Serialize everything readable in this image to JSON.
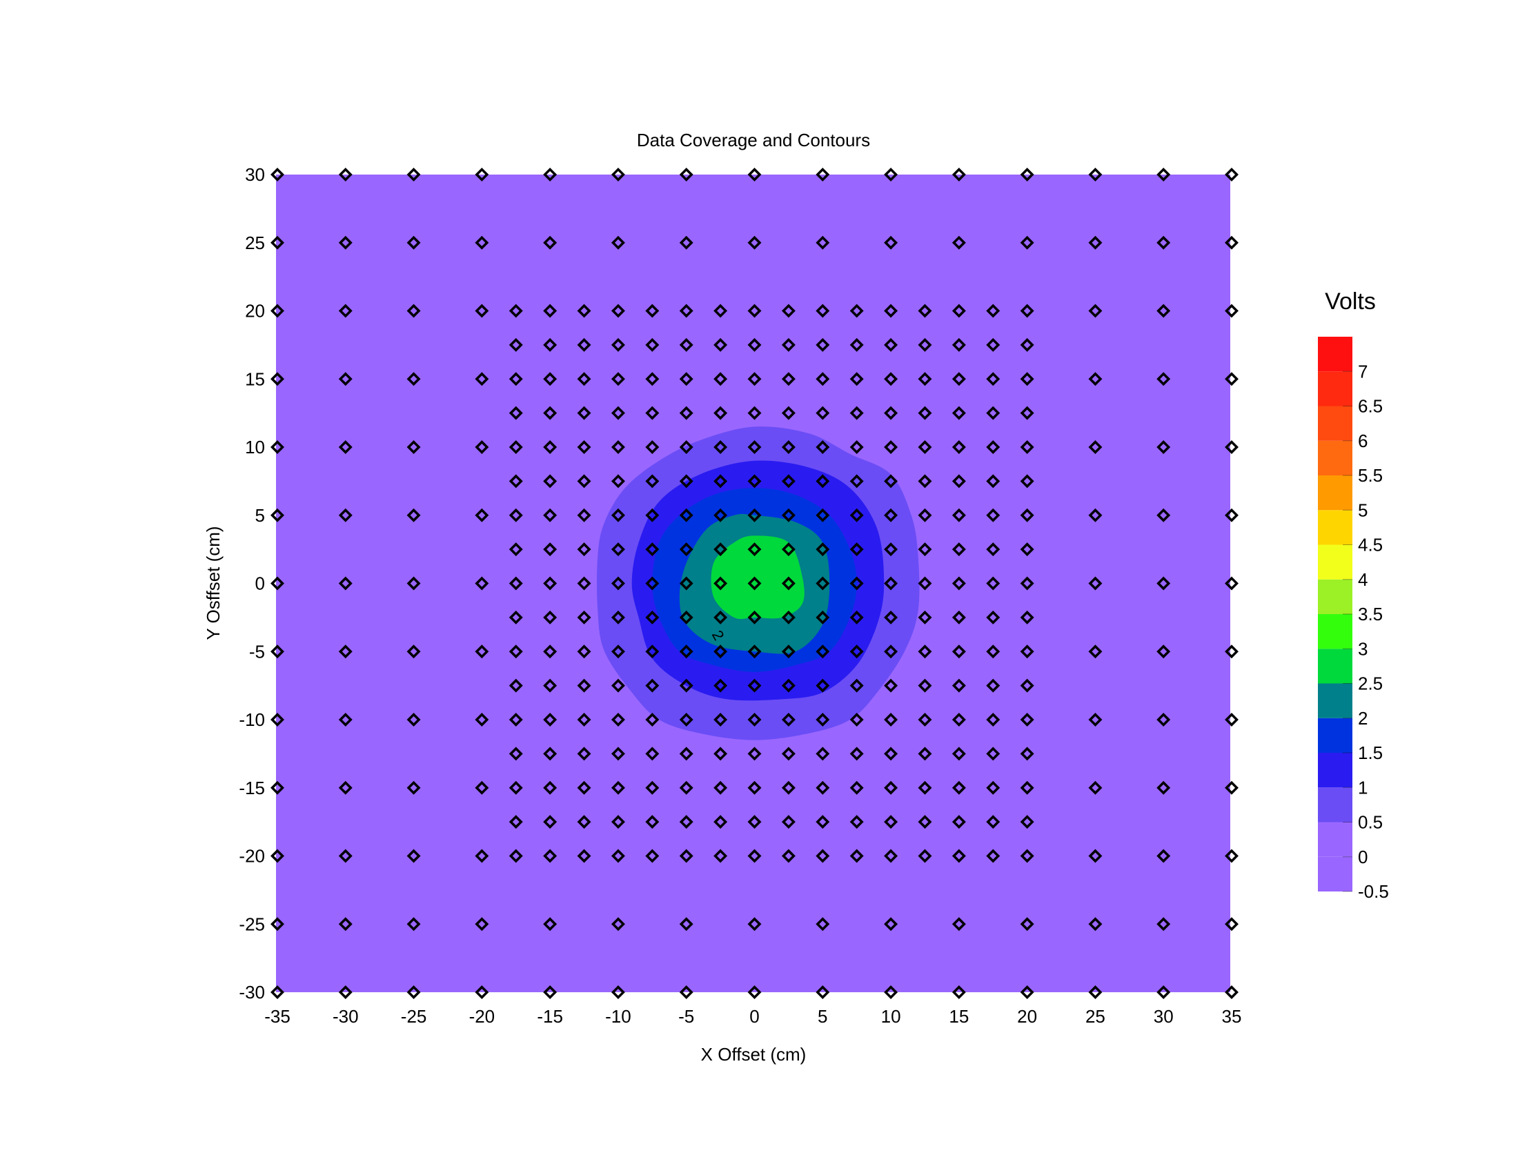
{
  "chart_data": {
    "type": "heatmap",
    "subtype": "filled-contour",
    "title": "Data Coverage and Contours",
    "xlabel": "X Offset (cm)",
    "ylabel": "Y Osffset (cm)",
    "xlim": [
      -35,
      35
    ],
    "ylim": [
      -30,
      30
    ],
    "x_ticks": [
      "-35",
      "-30",
      "-25",
      "-20",
      "-15",
      "-10",
      "-5",
      "0",
      "5",
      "10",
      "15",
      "20",
      "25",
      "30",
      "35"
    ],
    "y_ticks": [
      "30",
      "25",
      "20",
      "15",
      "10",
      "5",
      "0",
      "-5",
      "-10",
      "-15",
      "-20",
      "-25",
      "-30"
    ],
    "colorbar": {
      "title": "Volts",
      "levels": [
        -0.5,
        0,
        0.5,
        1,
        1.5,
        2,
        2.5,
        3,
        3.5,
        4,
        4.5,
        5,
        5.5,
        6,
        6.5,
        7,
        7.5
      ],
      "tick_labels": [
        "7",
        "6.5",
        "6",
        "5.5",
        "5",
        "4.5",
        "4",
        "3.5",
        "3",
        "2.5",
        "2",
        "1.5",
        "1",
        "0.5",
        "0",
        "-0.5"
      ],
      "colors": [
        "#9966ff",
        "#9966ff",
        "#6a4df5",
        "#2a1cf0",
        "#0033e0",
        "#00808a",
        "#00d93b",
        "#33ff0d",
        "#9cf026",
        "#f2ff1a",
        "#ffd500",
        "#ff9a00",
        "#ff6a10",
        "#ff4a10",
        "#ff2a10",
        "#ff1010"
      ]
    },
    "contours": [
      {
        "level": 0.5,
        "color": "#6a4df5",
        "points": [
          [
            0,
            11.5
          ],
          [
            4,
            11
          ],
          [
            7,
            9.5
          ],
          [
            10,
            8
          ],
          [
            11.5,
            5
          ],
          [
            12,
            2
          ],
          [
            12,
            -2
          ],
          [
            11,
            -5
          ],
          [
            9,
            -8
          ],
          [
            7,
            -10
          ],
          [
            4,
            -11
          ],
          [
            0,
            -11.5
          ],
          [
            -4,
            -11
          ],
          [
            -7,
            -10
          ],
          [
            -9,
            -8
          ],
          [
            -11,
            -5
          ],
          [
            -11.5,
            -2
          ],
          [
            -11.5,
            2
          ],
          [
            -11,
            4.5
          ],
          [
            -9.5,
            7
          ],
          [
            -7,
            9
          ],
          [
            -4,
            10.5
          ]
        ]
      },
      {
        "level": 1,
        "color": "#2a1cf0",
        "points": [
          [
            0,
            9
          ],
          [
            4,
            8.5
          ],
          [
            7,
            7
          ],
          [
            9,
            4
          ],
          [
            9.5,
            0
          ],
          [
            9,
            -3
          ],
          [
            7.5,
            -6
          ],
          [
            5,
            -8
          ],
          [
            2,
            -8.5
          ],
          [
            -2,
            -8.5
          ],
          [
            -5,
            -7.5
          ],
          [
            -7.5,
            -5.5
          ],
          [
            -8.5,
            -2.5
          ],
          [
            -9,
            0
          ],
          [
            -8.5,
            3
          ],
          [
            -7,
            6
          ],
          [
            -4,
            8
          ]
        ]
      },
      {
        "level": 1.5,
        "color": "#0033e0",
        "points": [
          [
            0,
            7
          ],
          [
            3,
            6.5
          ],
          [
            5.5,
            5
          ],
          [
            7,
            2.5
          ],
          [
            7.5,
            0
          ],
          [
            7,
            -2.5
          ],
          [
            5.5,
            -5
          ],
          [
            3,
            -6
          ],
          [
            0,
            -6.5
          ],
          [
            -3,
            -6
          ],
          [
            -5.5,
            -5
          ],
          [
            -7,
            -2.5
          ],
          [
            -7.5,
            0
          ],
          [
            -7,
            3
          ],
          [
            -5.5,
            5
          ],
          [
            -3,
            6.5
          ]
        ]
      },
      {
        "level": 2,
        "color": "#00808a",
        "points": [
          [
            0,
            5
          ],
          [
            3,
            4.5
          ],
          [
            5,
            3
          ],
          [
            5.5,
            0
          ],
          [
            5,
            -3
          ],
          [
            3,
            -5
          ],
          [
            0,
            -5
          ],
          [
            -3,
            -4.5
          ],
          [
            -5,
            -3
          ],
          [
            -5.5,
            -1
          ],
          [
            -5,
            1.5
          ],
          [
            -3.5,
            4
          ],
          [
            -1.5,
            5
          ]
        ]
      },
      {
        "level": 2.5,
        "color": "#00d93b",
        "points": [
          [
            0,
            3.5
          ],
          [
            2.5,
            3
          ],
          [
            3.5,
            0.5
          ],
          [
            3.5,
            -1.5
          ],
          [
            2,
            -2.5
          ],
          [
            0,
            -2.5
          ],
          [
            -1.5,
            -2.5
          ],
          [
            -3,
            -1
          ],
          [
            -3,
            1.5
          ],
          [
            -1.5,
            3
          ]
        ]
      }
    ],
    "contour_labels": [
      {
        "text": "2",
        "x": -3,
        "y": -4
      }
    ],
    "sample_points": {
      "coarse_x": [
        -35,
        -30,
        -25,
        -20,
        -15,
        -10,
        -5,
        0,
        5,
        10,
        15,
        20,
        25,
        30,
        35
      ],
      "coarse_y": [
        -30,
        -25,
        -20,
        -15,
        -10,
        -5,
        0,
        5,
        10,
        15,
        20,
        25,
        30
      ],
      "coarse_y_sparse_rows": [
        25,
        -25
      ],
      "coarse_x_sparse_cols": [
        -35,
        -30,
        -25,
        -20,
        -15,
        -10,
        -5,
        0,
        5,
        10,
        15,
        20,
        25,
        30,
        35
      ],
      "sparse_row_x": [
        -35,
        -30,
        -25,
        -20,
        -15,
        -10,
        -5,
        0,
        5,
        10,
        15,
        20,
        25,
        30,
        35
      ],
      "fine_x_range": [
        -20,
        20
      ],
      "fine_y_range": [
        -20,
        20
      ],
      "fine_step": 2.5
    }
  }
}
